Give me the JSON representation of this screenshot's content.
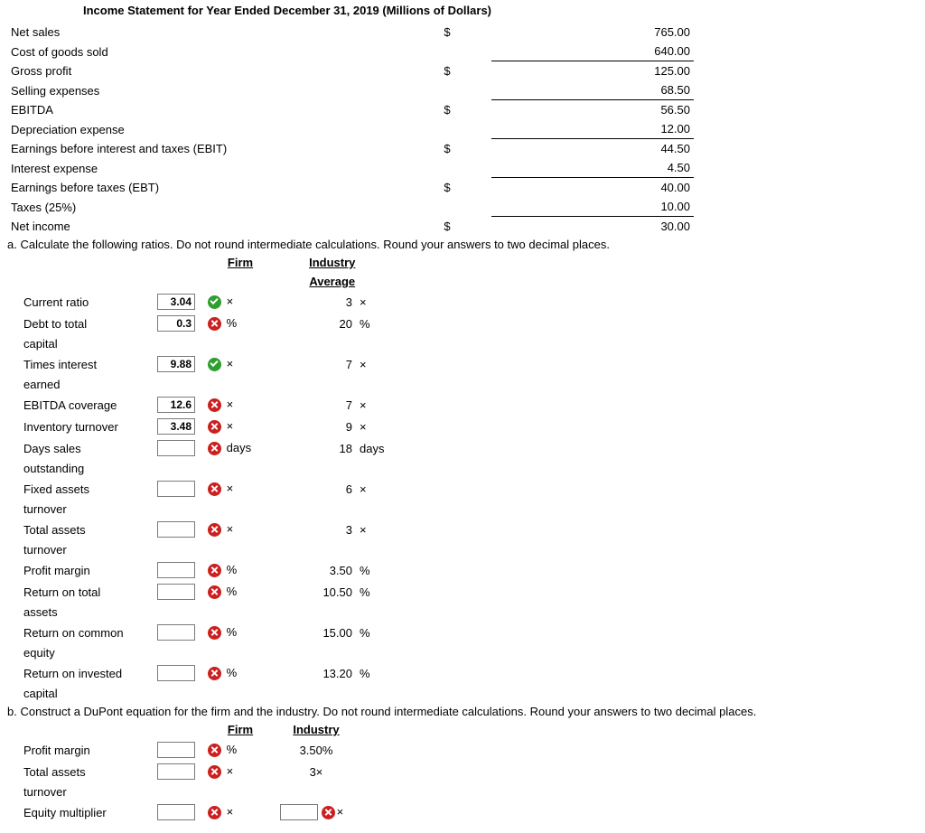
{
  "title": "Income Statement for Year Ended December 31, 2019 (Millions of Dollars)",
  "income": [
    {
      "label": "Net sales",
      "indent": false,
      "cur": "$",
      "val": "765.00",
      "topRule": false,
      "botRule": false
    },
    {
      "label": "Cost of goods sold",
      "indent": false,
      "cur": "",
      "val": "640.00",
      "topRule": false,
      "botRule": true
    },
    {
      "label": "Gross profit",
      "indent": true,
      "cur": "$",
      "val": "125.00",
      "topRule": false,
      "botRule": false
    },
    {
      "label": "Selling expenses",
      "indent": false,
      "cur": "",
      "val": "68.50",
      "topRule": false,
      "botRule": true
    },
    {
      "label": "EBITDA",
      "indent": false,
      "cur": "$",
      "val": "56.50",
      "topRule": false,
      "botRule": false
    },
    {
      "label": "Depreciation expense",
      "indent": false,
      "cur": "",
      "val": "12.00",
      "topRule": false,
      "botRule": true
    },
    {
      "label": "Earnings before interest and taxes (EBIT)",
      "indent": true,
      "cur": "$",
      "val": "44.50",
      "topRule": false,
      "botRule": false
    },
    {
      "label": "Interest expense",
      "indent": false,
      "cur": "",
      "val": "4.50",
      "topRule": false,
      "botRule": true
    },
    {
      "label": "Earnings before taxes (EBT)",
      "indent": true,
      "cur": "$",
      "val": "40.00",
      "topRule": false,
      "botRule": false
    },
    {
      "label": "Taxes (25%)",
      "indent": false,
      "cur": "",
      "val": "10.00",
      "topRule": false,
      "botRule": true
    },
    {
      "label": "Net income",
      "indent": false,
      "cur": "$",
      "val": "30.00",
      "topRule": false,
      "botRule": false
    }
  ],
  "a_instr": "a. Calculate the following ratios. Do not round intermediate calculations. Round your answers to two decimal places.",
  "hdr_firm": "Firm",
  "hdr_industry": "Industry",
  "hdr_avg": "Average",
  "a_rows": [
    {
      "label": "Current ratio",
      "val": "3.04",
      "status": "ok",
      "unit": "×",
      "ind": "3",
      "indu": "×"
    },
    {
      "label": "Debt to total capital",
      "val": "0.3",
      "status": "bad",
      "unit": "%",
      "ind": "20",
      "indu": "%"
    },
    {
      "label": "Times interest earned",
      "val": "9.88",
      "status": "ok",
      "unit": "×",
      "ind": "7",
      "indu": "×"
    },
    {
      "label": "EBITDA coverage",
      "val": "12.6",
      "status": "bad",
      "unit": "×",
      "ind": "7",
      "indu": "×"
    },
    {
      "label": "Inventory turnover",
      "val": "3.48",
      "status": "bad",
      "unit": "×",
      "ind": "9",
      "indu": "×"
    },
    {
      "label": "Days sales outstanding",
      "val": "",
      "status": "bad",
      "unit": "days",
      "ind": "18",
      "indu": "days"
    },
    {
      "label": "Fixed assets turnover",
      "val": "",
      "status": "bad",
      "unit": "×",
      "ind": "6",
      "indu": "×"
    },
    {
      "label": "Total assets turnover",
      "val": "",
      "status": "bad",
      "unit": "×",
      "ind": "3",
      "indu": "×"
    },
    {
      "label": "Profit margin",
      "val": "",
      "status": "bad",
      "unit": "%",
      "ind": "3.50",
      "indu": "%"
    },
    {
      "label": "Return on total assets",
      "val": "",
      "status": "bad",
      "unit": "%",
      "ind": "10.50",
      "indu": "%"
    },
    {
      "label": "Return on common equity",
      "val": "",
      "status": "bad",
      "unit": "%",
      "ind": "15.00",
      "indu": "%"
    },
    {
      "label": "Return on invested capital",
      "val": "",
      "status": "bad",
      "unit": "%",
      "ind": "13.20",
      "indu": "%"
    }
  ],
  "b_instr": "b. Construct a DuPont equation for the firm and the industry. Do not round intermediate calculations. Round your answers to two decimal places.",
  "b_rows": [
    {
      "label": "Profit margin",
      "val": "",
      "status": "bad",
      "unit": "%",
      "ind": "3.50%",
      "ind_input": false,
      "ind_status": "",
      "ind_unit": ""
    },
    {
      "label": "Total assets turnover",
      "val": "",
      "status": "bad",
      "unit": "×",
      "ind": "3×",
      "ind_input": false,
      "ind_status": "",
      "ind_unit": ""
    },
    {
      "label": "Equity multiplier",
      "val": "",
      "status": "bad",
      "unit": "×",
      "ind": "",
      "ind_input": true,
      "ind_status": "bad",
      "ind_unit": "×"
    }
  ]
}
